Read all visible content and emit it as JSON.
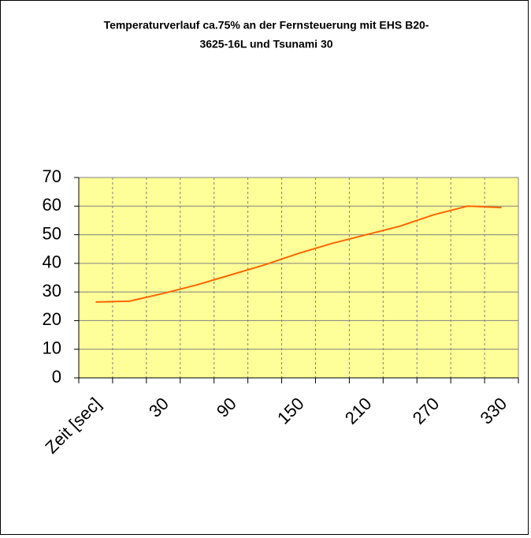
{
  "chart_data": {
    "type": "line",
    "title": [
      "Temperaturverlauf ca.75% an der Fernsteuerung mit EHS B20-",
      "3625-16L und Tsunami 30"
    ],
    "categories": [
      "Zeit [sec]",
      null,
      "30",
      null,
      "90",
      null,
      "150",
      null,
      "210",
      null,
      "270",
      null,
      "330"
    ],
    "series": [
      {
        "name": null,
        "color": "#ff6600",
        "values": [
          26.5,
          26.8,
          29.5,
          32.5,
          36,
          39.5,
          43.5,
          47,
          50,
          53,
          57,
          60,
          59.5
        ]
      }
    ],
    "ylim": [
      0,
      70
    ],
    "yticks": [
      0,
      10,
      20,
      30,
      40,
      50,
      60,
      70
    ],
    "grid": true,
    "plot_color": "#ffff99"
  }
}
